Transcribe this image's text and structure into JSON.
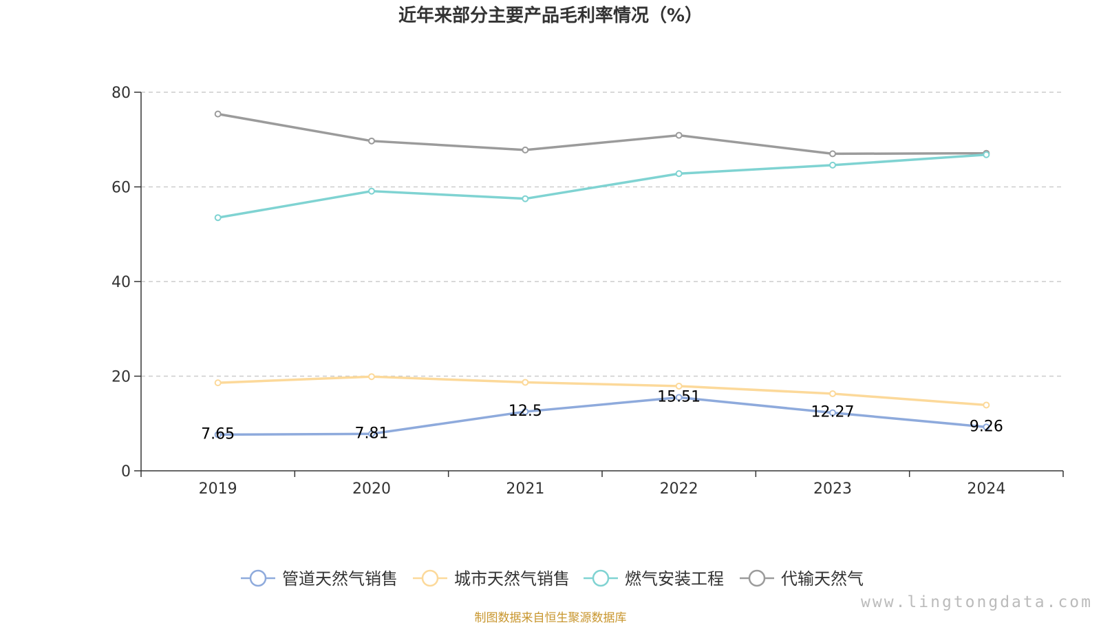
{
  "chart_data": {
    "type": "line",
    "title": "近年来部分主要产品毛利率情况（%）",
    "categories": [
      "2019",
      "2020",
      "2021",
      "2022",
      "2023",
      "2024"
    ],
    "y_ticks": [
      "0",
      "20",
      "40",
      "60",
      "80"
    ],
    "ylim": [
      0,
      80
    ],
    "grid": true,
    "legend_position": "bottom",
    "series": [
      {
        "name": "管道天然气销售",
        "color": "#8eaadc",
        "values": [
          7.65,
          7.81,
          12.5,
          15.51,
          12.27,
          9.26
        ],
        "labels": [
          "7.65",
          "7.81",
          "12.5",
          "15.51",
          "12.27",
          "9.26"
        ]
      },
      {
        "name": "城市天然气销售",
        "color": "#fcd99a",
        "values": [
          18.6,
          19.9,
          18.7,
          17.9,
          16.3,
          13.9
        ]
      },
      {
        "name": "燃气安装工程",
        "color": "#7fd3d2",
        "values": [
          53.5,
          59.1,
          57.5,
          62.8,
          64.6,
          66.8
        ]
      },
      {
        "name": "代输天然气",
        "color": "#9b9b9b",
        "values": [
          75.4,
          69.7,
          67.8,
          70.9,
          67.0,
          67.1
        ]
      }
    ]
  },
  "footer": {
    "source": "制图数据来自恒生聚源数据库",
    "watermark": "www.lingtongdata.com"
  }
}
